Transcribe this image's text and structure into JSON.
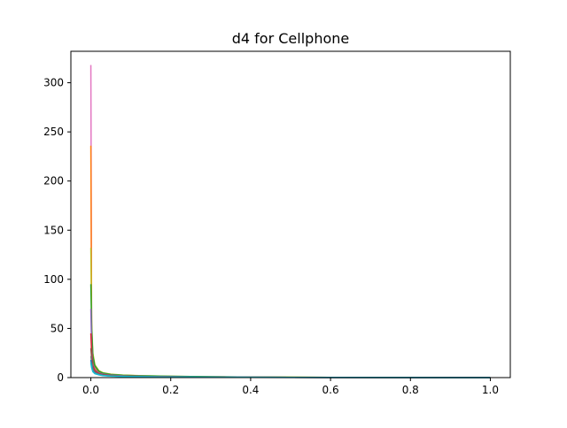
{
  "chart_data": {
    "type": "line",
    "title": "d4 for Cellphone",
    "xlabel": "",
    "ylabel": "",
    "xlim": [
      -0.05,
      1.05
    ],
    "ylim": [
      0,
      332
    ],
    "xticks": [
      0.0,
      0.2,
      0.4,
      0.6,
      0.8,
      1.0
    ],
    "xtick_labels": [
      "0.0",
      "0.2",
      "0.4",
      "0.6",
      "0.8",
      "1.0"
    ],
    "yticks": [
      0,
      50,
      100,
      150,
      200,
      250,
      300
    ],
    "ytick_labels": [
      "0",
      "50",
      "100",
      "150",
      "200",
      "250",
      "300"
    ],
    "grid": false,
    "legend": "none",
    "x": [
      0.0,
      0.002,
      0.005,
      0.01,
      0.02,
      0.03,
      0.05,
      0.08,
      0.12,
      0.2,
      0.3,
      0.4,
      0.5,
      0.6,
      0.8,
      1.0
    ],
    "series": [
      {
        "color": "#e377c2",
        "values": [
          318,
          40,
          18,
          10,
          6,
          4.2,
          3.0,
          2.2,
          1.8,
          1.2,
          0.8,
          0.5,
          0.3,
          0.2,
          0.1,
          0.05
        ]
      },
      {
        "color": "#ff7f0e",
        "values": [
          236,
          35,
          16,
          9,
          5.5,
          4.0,
          2.8,
          2.0,
          1.6,
          1.0,
          0.7,
          0.45,
          0.3,
          0.2,
          0.1,
          0.05
        ]
      },
      {
        "color": "#bcbd22",
        "values": [
          132,
          55,
          25,
          13,
          7,
          5.0,
          3.5,
          2.6,
          2.0,
          1.4,
          0.9,
          0.6,
          0.4,
          0.25,
          0.12,
          0.05
        ]
      },
      {
        "color": "#2ca02c",
        "values": [
          95,
          50,
          22,
          12,
          6.5,
          4.6,
          3.2,
          2.4,
          1.9,
          1.3,
          0.85,
          0.55,
          0.35,
          0.22,
          0.1,
          0.05
        ]
      },
      {
        "color": "#9467bd",
        "values": [
          70,
          30,
          14,
          8,
          4.8,
          3.5,
          2.5,
          1.8,
          1.4,
          0.9,
          0.6,
          0.4,
          0.25,
          0.15,
          0.08,
          0.04
        ]
      },
      {
        "color": "#d62728",
        "values": [
          45,
          25,
          12,
          7,
          4.2,
          3.0,
          2.2,
          1.6,
          1.2,
          0.8,
          0.55,
          0.35,
          0.22,
          0.14,
          0.07,
          0.03
        ]
      },
      {
        "color": "#8c564b",
        "values": [
          30,
          20,
          10,
          6,
          3.8,
          2.8,
          2.0,
          1.5,
          1.1,
          0.75,
          0.5,
          0.32,
          0.2,
          0.12,
          0.06,
          0.03
        ]
      },
      {
        "color": "#7f7f7f",
        "values": [
          22,
          15,
          8,
          5,
          3.2,
          2.4,
          1.7,
          1.3,
          1.0,
          0.7,
          0.45,
          0.3,
          0.18,
          0.1,
          0.05,
          0.02
        ]
      },
      {
        "color": "#1f77b4",
        "values": [
          18,
          12,
          7,
          4.5,
          3.0,
          2.2,
          1.6,
          1.2,
          0.9,
          0.6,
          0.4,
          0.26,
          0.16,
          0.1,
          0.05,
          0.02
        ]
      },
      {
        "color": "#17becf",
        "values": [
          15,
          10,
          6,
          4,
          2.8,
          2.0,
          1.5,
          1.1,
          0.85,
          0.6,
          0.45,
          0.3,
          0.2,
          0.12,
          0.06,
          0.03
        ]
      }
    ]
  }
}
